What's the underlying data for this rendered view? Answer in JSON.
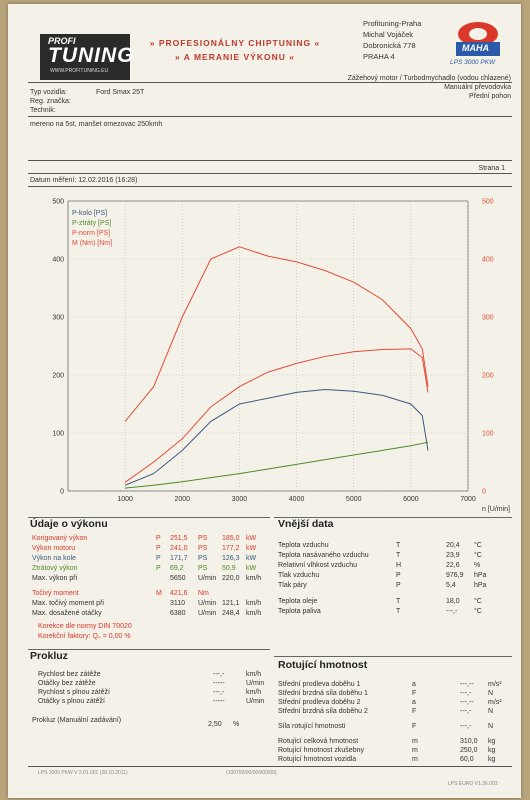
{
  "header": {
    "logo_top": "PROFI",
    "logo_main": "TUNING",
    "logo_url": "WWW.PROFITUNING.EU",
    "banner_line1": "» PROFESIONÁLNY CHIPTUNING «",
    "banner_line2": "» A MERANIE VÝKONU «",
    "company": [
      "Profituning-Praha",
      "Michal Vojáček",
      "Dobronická 778",
      "PRAHA 4"
    ],
    "badge_text": "MAHA",
    "badge_model": "LPS 3000 PKW"
  },
  "vehicle": {
    "type_label": "Typ vozidla:",
    "type_value": "Ford Smax 25T",
    "reg_label": "Reg. značka:",
    "tech_label": "Technik:",
    "engine": "Zážehový motor / Turbodmychadlo (vodou chlazené)",
    "gearbox": "Manuální převodovka",
    "drive": "Přední pohon",
    "note": "mereno na 5st, manšet omezovac 250kmh",
    "page": "Strana 1",
    "date": "Datum měření: 12.02.2016 (16:28)"
  },
  "chart_data": {
    "type": "line",
    "x": [
      1000,
      1500,
      2000,
      2500,
      3000,
      3500,
      4000,
      4500,
      5000,
      5500,
      6000,
      6200,
      6300
    ],
    "series": [
      {
        "name": "P-kolo [PS]",
        "color": "#3b5a80",
        "values": [
          10,
          30,
          70,
          120,
          150,
          160,
          170,
          175,
          172,
          165,
          150,
          130,
          70
        ]
      },
      {
        "name": "P-ztráty [PS]",
        "color": "#4d8a2a",
        "values": [
          5,
          10,
          16,
          23,
          30,
          38,
          46,
          54,
          62,
          70,
          78,
          82,
          84
        ]
      },
      {
        "name": "P-norm [PS]",
        "color": "#e34b3a",
        "values": [
          15,
          50,
          90,
          145,
          180,
          205,
          220,
          232,
          240,
          244,
          245,
          230,
          170
        ]
      },
      {
        "name": "M (Nm) [Nm]",
        "color": "#e34b3a",
        "values": [
          120,
          180,
          300,
          400,
          421,
          405,
          395,
          380,
          360,
          330,
          280,
          245,
          180
        ]
      }
    ],
    "xlim": [
      0,
      7000
    ],
    "ylim": [
      0,
      500
    ],
    "xticks": [
      1000,
      2000,
      3000,
      4000,
      5000,
      6000,
      7000
    ],
    "yticks": [
      0,
      100,
      200,
      300,
      400,
      500
    ],
    "xlabel": "n [U/min]"
  },
  "power": {
    "title": "Údaje o výkonu",
    "rows": [
      {
        "label": "Korigovaný výkon",
        "sym": "P",
        "v1": "251,5",
        "u1": "PS",
        "v2": "185,0",
        "u2": "kW",
        "cls": "red"
      },
      {
        "label": "Výkon motoru",
        "sym": "P",
        "v1": "241,0",
        "u1": "PS",
        "v2": "177,2",
        "u2": "kW",
        "cls": "red"
      },
      {
        "label": "Výkon na kole",
        "sym": "P",
        "v1": "171,7",
        "u1": "PS",
        "v2": "126,3",
        "u2": "kW",
        "cls": "blue"
      },
      {
        "label": "Ztrátový výkon",
        "sym": "P",
        "v1": "69,2",
        "u1": "PS",
        "v2": "50,9",
        "u2": "kW",
        "cls": "green"
      },
      {
        "label": "Max. výkon při",
        "sym": "",
        "v1": "5650",
        "u1": "U/min",
        "v2": "220,0",
        "u2": "km/h",
        "cls": ""
      },
      {
        "label": "Točivý moment",
        "sym": "M",
        "v1": "421,6",
        "u1": "Nm",
        "v2": "",
        "u2": "",
        "cls": "red"
      },
      {
        "label": "Max. točivý moment při",
        "sym": "",
        "v1": "3110",
        "u1": "U/min",
        "v2": "121,1",
        "u2": "km/h",
        "cls": ""
      },
      {
        "label": "Max. dosažené otáčky",
        "sym": "",
        "v1": "6380",
        "u1": "U/min",
        "v2": "248,4",
        "u2": "km/h",
        "cls": ""
      }
    ],
    "correction": "Korekce dle normy DIN 70020",
    "factor": "Korekční faktory: Q₀ =  0,00 %"
  },
  "external": {
    "title": "Vnější data",
    "rows": [
      {
        "label": "Teplota vzduchu",
        "sym": "T",
        "val": "20,4",
        "unit": "°C"
      },
      {
        "label": "Teplota nasávaného vzduchu",
        "sym": "T",
        "val": "23,9",
        "unit": "°C"
      },
      {
        "label": "Relativní vlhkost vzduchu",
        "sym": "H",
        "val": "22,6",
        "unit": "%"
      },
      {
        "label": "Tlak vzduchu",
        "sym": "P",
        "val": "976,9",
        "unit": "hPa"
      },
      {
        "label": "Tlak páry",
        "sym": "P",
        "val": "5,4",
        "unit": "hPa"
      },
      {
        "label": "Teplota oleje",
        "sym": "T",
        "val": "18,0",
        "unit": "°C"
      },
      {
        "label": "Teplota paliva",
        "sym": "T",
        "val": "---,-",
        "unit": "°C"
      }
    ]
  },
  "prokluz": {
    "title": "Prokluz",
    "rows": [
      {
        "label": "Rychlost bez zátěže",
        "val": "---,-",
        "unit": "km/h"
      },
      {
        "label": "Otáčky bez zátěže",
        "val": "-----",
        "unit": "U/min"
      },
      {
        "label": "Rychlost s plnou zátěží",
        "val": "---,-",
        "unit": "km/h"
      },
      {
        "label": "Otáčky s plnou zátěží",
        "val": "-----",
        "unit": "U/min"
      }
    ],
    "slip_label": "Prokluz (Manuální zadávání)",
    "slip_val": "2,50",
    "slip_unit": "%"
  },
  "rotating": {
    "title": "Rotující hmotnost",
    "rows": [
      {
        "label": "Střední prodleva doběhu 1",
        "sym": "a",
        "val": "---,--",
        "unit": "m/s²"
      },
      {
        "label": "Střední brzdná síla doběhu 1",
        "sym": "F",
        "val": "---,-",
        "unit": "N"
      },
      {
        "label": "Střední prodleva doběhu 2",
        "sym": "a",
        "val": "---,--",
        "unit": "m/s²"
      },
      {
        "label": "Střední brzdná síla doběhu 2",
        "sym": "F",
        "val": "---,-",
        "unit": "N"
      },
      {
        "label": "Síla rotující hmotnosti",
        "sym": "F",
        "val": "---,-",
        "unit": "N"
      },
      {
        "label": "Rotující celková hmotnost",
        "sym": "m",
        "val": "310,0",
        "unit": "kg"
      },
      {
        "label": "Rotující hmotnost zkušebny",
        "sym": "m",
        "val": "250,0",
        "unit": "kg"
      },
      {
        "label": "Rotující hmotnost vozidla",
        "sym": "m",
        "val": "60,0",
        "unit": "kg"
      }
    ]
  },
  "footer": {
    "left": "LPS 3000 PKW V 2.01.001 (28.10.2011)",
    "center": "(100700/00/00/000/00)",
    "right": "LPS EURO V1.36.003"
  }
}
